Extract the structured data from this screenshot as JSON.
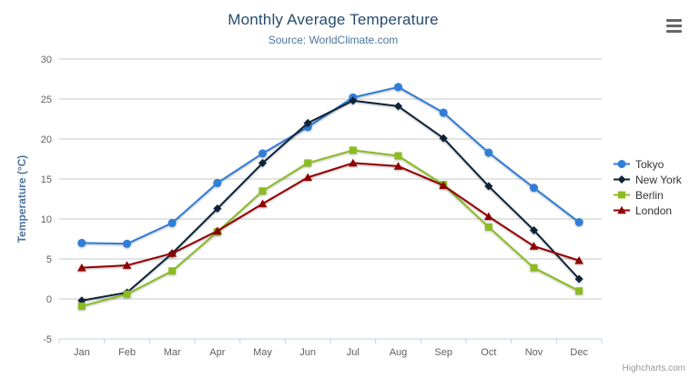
{
  "icons": {
    "context_menu": "hamburger"
  },
  "credit": {
    "label": "Highcharts.com"
  },
  "chart_data": {
    "type": "line",
    "title": "Monthly Average Temperature",
    "subtitle": "Source: WorldClimate.com",
    "categories": [
      "Jan",
      "Feb",
      "Mar",
      "Apr",
      "May",
      "Jun",
      "Jul",
      "Aug",
      "Sep",
      "Oct",
      "Nov",
      "Dec"
    ],
    "xlabel": "",
    "ylabel": "Temperature (°C)",
    "ylim": [
      -5,
      30
    ],
    "tick_interval": 5,
    "grid": true,
    "legend_position": "right",
    "series": [
      {
        "name": "Tokyo",
        "color": "#2f7ed8",
        "marker": "circle",
        "values": [
          7.0,
          6.9,
          9.5,
          14.5,
          18.2,
          21.5,
          25.2,
          26.5,
          23.3,
          18.3,
          13.9,
          9.6
        ]
      },
      {
        "name": "New York",
        "color": "#0d233a",
        "marker": "diamond",
        "values": [
          -0.2,
          0.8,
          5.7,
          11.3,
          17.0,
          22.0,
          24.8,
          24.1,
          20.1,
          14.1,
          8.6,
          2.5
        ]
      },
      {
        "name": "Berlin",
        "color": "#8bbc21",
        "marker": "square",
        "values": [
          -0.9,
          0.6,
          3.5,
          8.4,
          13.5,
          17.0,
          18.6,
          17.9,
          14.3,
          9.0,
          3.9,
          1.0
        ]
      },
      {
        "name": "London",
        "color": "#910000",
        "marker": "triangle",
        "values": [
          3.9,
          4.2,
          5.7,
          8.5,
          11.9,
          15.2,
          17.0,
          16.6,
          14.2,
          10.3,
          6.6,
          4.8
        ]
      }
    ],
    "style": {
      "grid_color": "#C8C8C8",
      "axis_line_color": "#C0D0E0",
      "label_color": "#606060"
    }
  }
}
